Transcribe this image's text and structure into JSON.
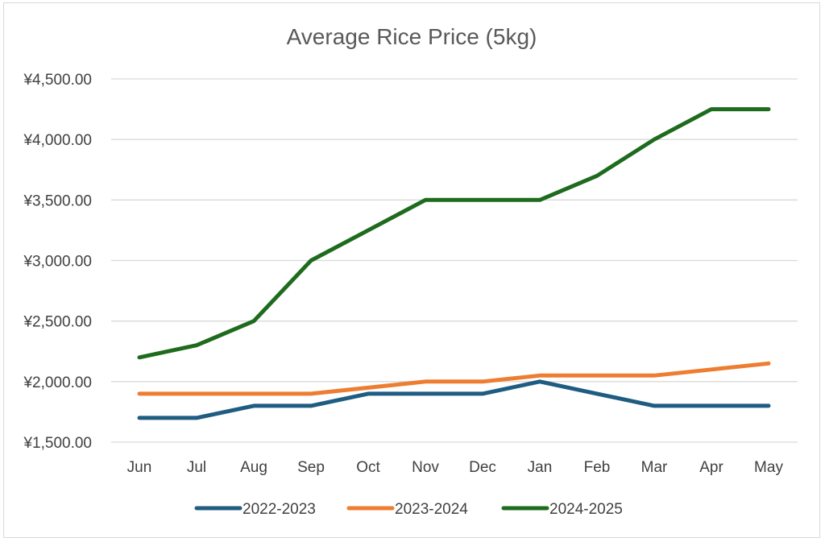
{
  "chart_data": {
    "type": "line",
    "title": "Average Rice Price (5kg)",
    "xlabel": "",
    "ylabel": "",
    "categories": [
      "Jun",
      "Jul",
      "Aug",
      "Sep",
      "Oct",
      "Nov",
      "Dec",
      "Jan",
      "Feb",
      "Mar",
      "Apr",
      "May"
    ],
    "ylim": [
      1500,
      4500
    ],
    "yticks": [
      4500,
      4000,
      3500,
      3000,
      2500,
      2000,
      1500
    ],
    "ytick_labels": [
      "¥4,500.00",
      "¥4,000.00",
      "¥3,500.00",
      "¥3,000.00",
      "¥2,500.00",
      "¥2,000.00",
      "¥1,500.00"
    ],
    "grid": true,
    "legend_position": "bottom",
    "series": [
      {
        "name": "2022-2023",
        "color": "#1f5c82",
        "values": [
          1700,
          1700,
          1800,
          1800,
          1900,
          1900,
          1900,
          2000,
          1900,
          1800,
          1800,
          1800
        ]
      },
      {
        "name": "2023-2024",
        "color": "#ed7d31",
        "values": [
          1900,
          1900,
          1900,
          1900,
          1950,
          2000,
          2000,
          2050,
          2050,
          2050,
          2100,
          2150
        ]
      },
      {
        "name": "2024-2025",
        "color": "#1e6b1e",
        "values": [
          2200,
          2300,
          2500,
          3000,
          3250,
          3500,
          3500,
          3500,
          3700,
          4000,
          4250,
          4250
        ]
      }
    ]
  }
}
